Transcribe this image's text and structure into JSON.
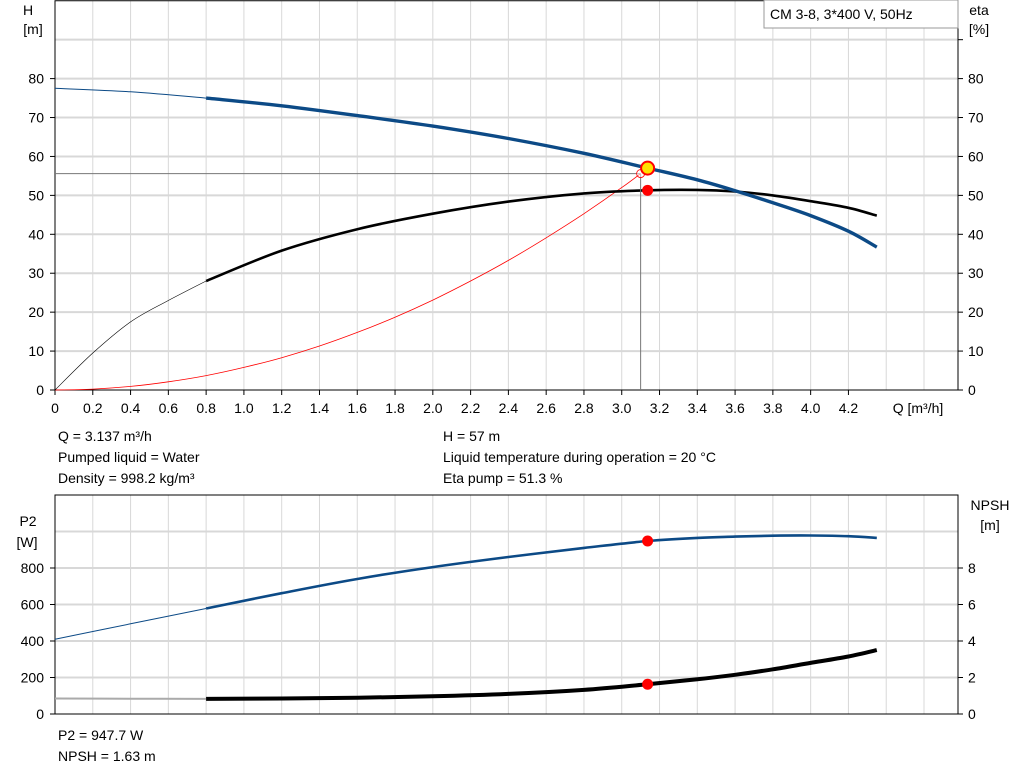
{
  "legend": {
    "title": "CM 3-8, 3*400 V, 50Hz"
  },
  "colors": {
    "blue": "#0c4a86",
    "black": "#000000",
    "red": "#ff0000",
    "op_point": "#ffe000",
    "grid": "#d8d8d8"
  },
  "info_top": {
    "q": "Q = 3.137 m³/h",
    "liquid": "Pumped liquid = Water",
    "density": "Density = 998.2 kg/m³",
    "h": "H = 57 m",
    "temp": "Liquid temperature during operation = 20 °C",
    "eta": "Eta pump = 51.3 %"
  },
  "info_bottom": {
    "p2": "P2 = 947.7 W",
    "npsh": "NPSH = 1.63 m"
  },
  "chart_data": [
    {
      "type": "line",
      "title": "CM 3-8, 3*400 V, 50Hz",
      "xlabel": "Q [m³/h]",
      "ylabel_left": {
        "name": "H",
        "unit": "[m]"
      },
      "ylabel_right": {
        "name": "eta",
        "unit": "[%]"
      },
      "xlim": [
        0,
        4.78
      ],
      "ylim": [
        0,
        100
      ],
      "xticks": [
        "0",
        "0.2",
        "0.4",
        "0.6",
        "0.8",
        "1.0",
        "1.2",
        "1.4",
        "1.6",
        "1.8",
        "2.0",
        "2.2",
        "2.4",
        "2.6",
        "2.8",
        "3.0",
        "3.2",
        "3.4",
        "3.6",
        "3.8",
        "4.0",
        "4.2"
      ],
      "yticks": [
        "0",
        "10",
        "20",
        "30",
        "40",
        "50",
        "60",
        "70",
        "80"
      ],
      "grid": true,
      "series": [
        {
          "id": "H",
          "color": "#0c4a86",
          "thin_until": 0.8,
          "x": [
            0,
            0.4,
            0.8,
            1.2,
            1.6,
            2.0,
            2.4,
            2.8,
            3.137,
            3.4,
            3.6,
            3.8,
            4.0,
            4.2,
            4.35
          ],
          "y": [
            77.5,
            76.6,
            75,
            73,
            70.5,
            67.8,
            64.6,
            60.8,
            57,
            54,
            51.2,
            48.1,
            44.8,
            40.8,
            36.7
          ]
        },
        {
          "id": "eta",
          "color": "#000000",
          "thin_until": 0.8,
          "x": [
            0,
            0.2,
            0.4,
            0.6,
            0.8,
            1.2,
            1.6,
            2.0,
            2.4,
            2.8,
            3.137,
            3.4,
            3.6,
            3.8,
            4.0,
            4.2,
            4.35
          ],
          "y": [
            0,
            9.5,
            17.5,
            23,
            28,
            35.8,
            41.3,
            45.3,
            48.4,
            50.5,
            51.3,
            51.4,
            51,
            50,
            48.5,
            46.8,
            44.8
          ]
        },
        {
          "id": "system",
          "color": "#ff0000",
          "x": [
            0,
            0.2,
            0.4,
            0.6,
            0.8,
            1.0,
            1.2,
            1.4,
            1.6,
            1.8,
            2.0,
            2.2,
            2.4,
            2.6,
            2.8,
            3.0,
            3.1
          ],
          "y": [
            0,
            0.23,
            0.92,
            2.1,
            3.7,
            5.8,
            8.3,
            11.3,
            14.8,
            18.7,
            23.1,
            28,
            33.3,
            39.1,
            45.3,
            52,
            55.6
          ]
        }
      ],
      "operating_point": {
        "q": 3.137,
        "h": 57,
        "eta": 51.3
      },
      "guide": {
        "q": 3.1,
        "h": 55.6
      }
    },
    {
      "type": "line",
      "ylabel_left": {
        "name": "P2",
        "unit": "[W]"
      },
      "ylabel_right": {
        "name": "NPSH",
        "unit": "[m]"
      },
      "xlim": [
        0,
        4.78
      ],
      "ylim": [
        0,
        1200
      ],
      "ylim_right": [
        0,
        12
      ],
      "yticks": [
        "0",
        "200",
        "400",
        "600",
        "800"
      ],
      "yticks_right": [
        "0",
        "2",
        "4",
        "6",
        "8"
      ],
      "grid": true,
      "series": [
        {
          "id": "P2",
          "color": "#0c4a86",
          "axis": "left",
          "thin_until": 0.8,
          "x": [
            0,
            0.4,
            0.8,
            1.2,
            1.6,
            2.0,
            2.4,
            2.8,
            3.137,
            3.4,
            3.6,
            3.8,
            4.0,
            4.2,
            4.35
          ],
          "y": [
            410,
            494,
            578,
            662,
            740,
            805,
            860,
            910,
            947.7,
            965,
            972,
            977,
            978,
            974,
            965
          ]
        },
        {
          "id": "NPSH",
          "color": "#000000",
          "axis": "right",
          "thin_until": 0.8,
          "x": [
            0,
            0.4,
            0.8,
            1.2,
            1.6,
            2.0,
            2.4,
            2.8,
            3.137,
            3.4,
            3.6,
            3.8,
            4.0,
            4.2,
            4.35
          ],
          "y": [
            0.85,
            0.84,
            0.83,
            0.85,
            0.89,
            0.97,
            1.1,
            1.32,
            1.63,
            1.9,
            2.15,
            2.45,
            2.8,
            3.15,
            3.5
          ]
        }
      ],
      "operating_point": {
        "q": 3.137,
        "p2": 947.7,
        "npsh": 1.63
      }
    }
  ]
}
